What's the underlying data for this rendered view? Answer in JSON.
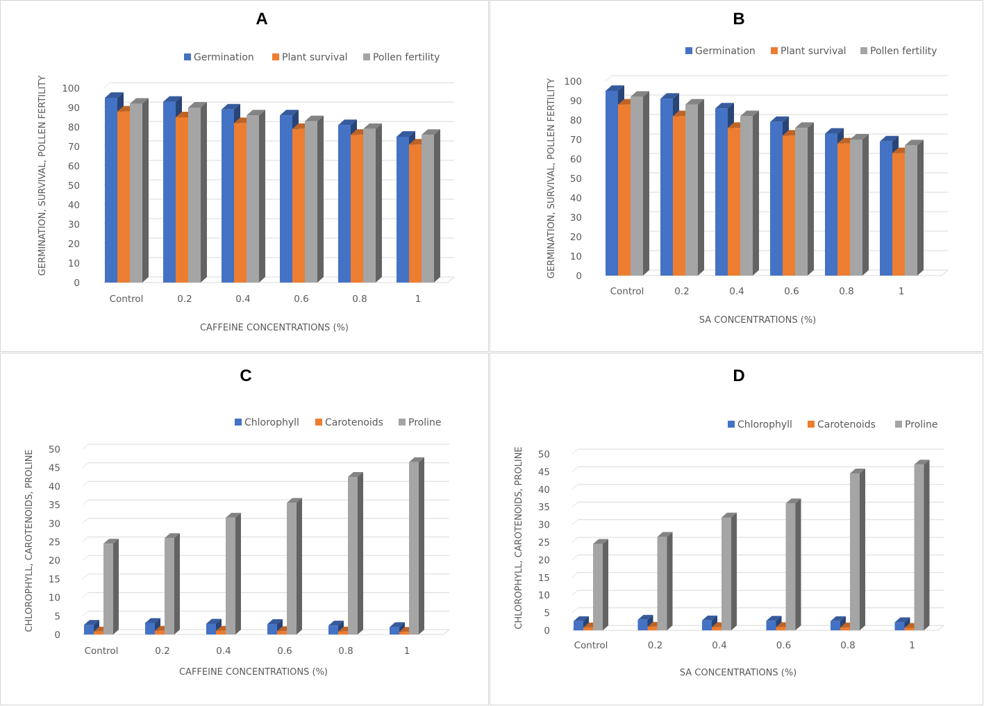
{
  "colors": {
    "blue": "#4472c4",
    "orange": "#ed7d31",
    "gray": "#a5a5a5"
  },
  "chart_data": [
    {
      "id": "A",
      "panel_label": "A",
      "type": "bar",
      "categories": [
        "Control",
        "0.2",
        "0.4",
        "0.6",
        "0.8",
        "1"
      ],
      "series": [
        {
          "name": "Germination",
          "color": "#4472c4",
          "values": [
            95,
            93,
            89,
            86,
            81,
            75
          ]
        },
        {
          "name": "Plant survival",
          "color": "#ed7d31",
          "values": [
            88,
            85,
            82,
            79,
            76,
            71
          ]
        },
        {
          "name": "Pollen fertility",
          "color": "#a5a5a5",
          "values": [
            92,
            90,
            86,
            83,
            79,
            76
          ]
        }
      ],
      "xlabel": "CAFFEINE CONCENTRATIONS (%)",
      "ylabel": "GERMINATION, SURVIVAL, POLLEN FERTILITY",
      "ylim": [
        0,
        100
      ],
      "yticks": [
        0,
        10,
        20,
        30,
        40,
        50,
        60,
        70,
        80,
        90,
        100
      ],
      "legend": "top-right",
      "grid": true
    },
    {
      "id": "B",
      "panel_label": "B",
      "type": "bar",
      "categories": [
        "Control",
        "0.2",
        "0.4",
        "0.6",
        "0.8",
        "1"
      ],
      "series": [
        {
          "name": "Germination",
          "color": "#4472c4",
          "values": [
            95,
            91,
            86,
            79,
            73,
            69
          ]
        },
        {
          "name": "Plant survival",
          "color": "#ed7d31",
          "values": [
            88,
            82,
            76,
            72,
            68,
            63
          ]
        },
        {
          "name": "Pollen fertility",
          "color": "#a5a5a5",
          "values": [
            92,
            88,
            82,
            76,
            70,
            67
          ]
        }
      ],
      "xlabel": "SA CONCENTRATIONS (%)",
      "ylabel": "GERMINATION, SURVIVAL, POLLEN FERTILITY",
      "ylim": [
        0,
        100
      ],
      "yticks": [
        0,
        10,
        20,
        30,
        40,
        50,
        60,
        70,
        80,
        90,
        100
      ],
      "legend": "top-right",
      "grid": true
    },
    {
      "id": "C",
      "panel_label": "C",
      "type": "bar",
      "categories": [
        "Control",
        "0.2",
        "0.4",
        "0.6",
        "0.8",
        "1"
      ],
      "series": [
        {
          "name": "Chlorophyll",
          "color": "#4472c4",
          "values": [
            2.6,
            3.1,
            2.9,
            2.8,
            2.4,
            2.0
          ]
        },
        {
          "name": "Carotenoids",
          "color": "#ed7d31",
          "values": [
            0.8,
            1.0,
            1.0,
            0.9,
            0.8,
            0.7
          ]
        },
        {
          "name": "Proline",
          "color": "#a5a5a5",
          "values": [
            24.5,
            26.0,
            31.5,
            35.5,
            42.5,
            46.5
          ]
        }
      ],
      "xlabel": "CAFFEINE CONCENTRATIONS (%)",
      "ylabel": "CHLOROPHYLL, CAROTENOIDS, PROLINE",
      "ylim": [
        0,
        50
      ],
      "yticks": [
        0,
        5,
        10,
        15,
        20,
        25,
        30,
        35,
        40,
        45,
        50
      ],
      "legend": "top-right",
      "grid": true
    },
    {
      "id": "D",
      "panel_label": "D",
      "type": "bar",
      "categories": [
        "Control",
        "0.2",
        "0.4",
        "0.6",
        "0.8",
        "1"
      ],
      "series": [
        {
          "name": "Chlorophyll",
          "color": "#4472c4",
          "values": [
            2.6,
            3.0,
            2.8,
            2.7,
            2.6,
            2.3
          ]
        },
        {
          "name": "Carotenoids",
          "color": "#ed7d31",
          "values": [
            0.8,
            1.0,
            0.9,
            0.9,
            0.8,
            0.7
          ]
        },
        {
          "name": "Proline",
          "color": "#a5a5a5",
          "values": [
            24.5,
            26.5,
            32.0,
            36.0,
            44.5,
            47.0
          ]
        }
      ],
      "xlabel": "SA CONCENTRATIONS (%)",
      "ylabel": "CHLOROPHYLL, CAROTENOIDS, PROLINE",
      "ylim": [
        0,
        50
      ],
      "yticks": [
        0,
        5,
        10,
        15,
        20,
        25,
        30,
        35,
        40,
        45,
        50
      ],
      "legend": "top-right",
      "grid": true
    }
  ]
}
